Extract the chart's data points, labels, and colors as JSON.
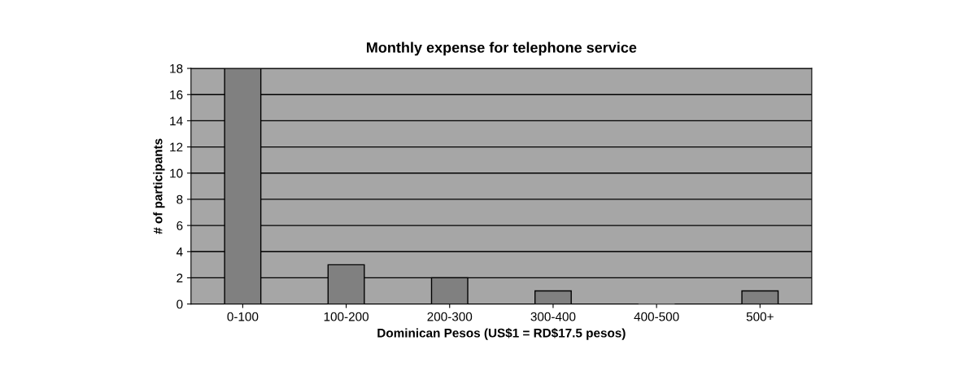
{
  "chart_data": {
    "type": "bar",
    "title": "Monthly expense for telephone service",
    "xlabel": "Dominican Pesos (US$1 = RD$17.5 pesos)",
    "ylabel": "# of participants",
    "categories": [
      "0-100",
      "100-200",
      "200-300",
      "300-400",
      "400-500",
      "500+"
    ],
    "values": [
      18,
      3,
      2,
      1,
      0,
      1
    ],
    "color": "#808080",
    "ylim": [
      0,
      18
    ],
    "yticks": [
      0,
      2,
      4,
      6,
      8,
      10,
      12,
      14,
      16,
      18
    ],
    "grid": "y",
    "legend": false
  }
}
